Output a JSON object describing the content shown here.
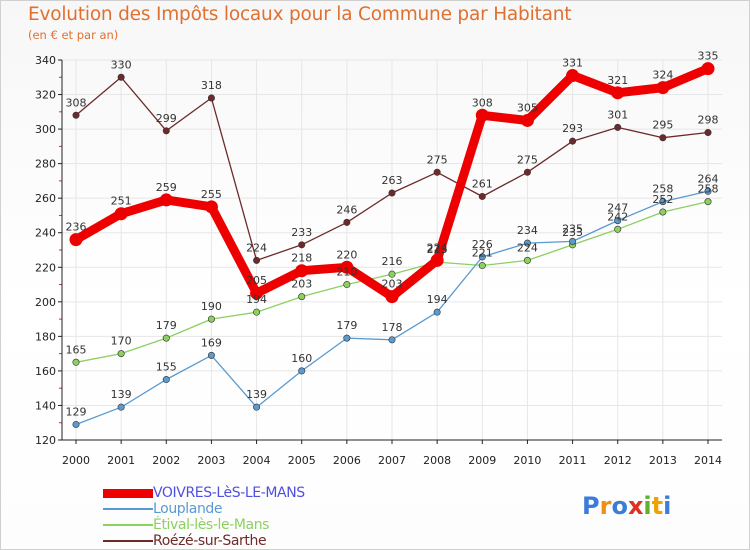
{
  "header": {
    "title": "Evolution des Impôts locaux pour la Commune par Habitant",
    "subtitle": "(en € et par an)"
  },
  "colors": {
    "title": "#e07030",
    "axis": "#222222",
    "grid": "#e6e6e6"
  },
  "logo": {
    "letters": [
      "P",
      "r",
      "o",
      "x",
      "i",
      "t",
      "i"
    ],
    "colors": [
      "#3a7dd8",
      "#f09010",
      "#3a7dd8",
      "#e03020",
      "#60b030",
      "#f0a000",
      "#3a7dd8"
    ]
  },
  "chart_data": {
    "type": "line",
    "title": "Evolution des Impôts locaux pour la Commune par Habitant",
    "subtitle": "(en € et par an)",
    "xlabel": "",
    "ylabel": "",
    "x": [
      2000,
      2001,
      2002,
      2003,
      2004,
      2005,
      2006,
      2007,
      2008,
      2009,
      2010,
      2011,
      2012,
      2013,
      2014
    ],
    "xticks": [
      "2000",
      "2001",
      "2002",
      "2003",
      "2004",
      "2005",
      "2006",
      "2007",
      "2008",
      "2009",
      "2010",
      "2011",
      "2012",
      "2013",
      "2014"
    ],
    "ylim": [
      120,
      340
    ],
    "yticks": [
      120,
      140,
      160,
      180,
      200,
      220,
      240,
      260,
      280,
      300,
      320,
      340
    ],
    "grid": true,
    "legend_position": "bottom-left",
    "series": [
      {
        "name": "VOIVRES-LèS-LE-MANS",
        "color": "#ee0000",
        "label_color": "#5050e0",
        "values": [
          236,
          251,
          259,
          255,
          205,
          218,
          220,
          203,
          224,
          308,
          305,
          331,
          321,
          324,
          335
        ]
      },
      {
        "name": "Louplande",
        "color": "#5a9ad0",
        "label_color": "#5a9ad0",
        "values": [
          129,
          139,
          155,
          169,
          139,
          160,
          179,
          178,
          194,
          226,
          234,
          235,
          247,
          258,
          264
        ]
      },
      {
        "name": "Étival-lès-le-Mans",
        "color": "#8cd060",
        "label_color": "#8cd060",
        "values": [
          165,
          170,
          179,
          190,
          194,
          203,
          210,
          216,
          223,
          221,
          224,
          233,
          242,
          252,
          258
        ]
      },
      {
        "name": "Roézé-sur-Sarthe",
        "color": "#6e2a2a",
        "label_color": "#6e2a2a",
        "values": [
          308,
          330,
          299,
          318,
          224,
          233,
          246,
          263,
          275,
          261,
          275,
          293,
          301,
          295,
          298
        ]
      }
    ]
  }
}
